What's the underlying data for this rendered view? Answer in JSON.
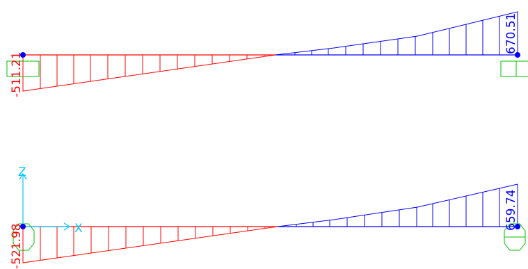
{
  "colors": {
    "negative": "#ff0000",
    "positive": "#0000ff",
    "support": "#00c000",
    "axis": "#00c8ff",
    "node": "#0000ff",
    "background": "#ffffff"
  },
  "beams": [
    {
      "id": "beam-1",
      "start_value": "-511.21",
      "end_value": "670.51",
      "start_support": "pin-box",
      "end_support": "pin-box"
    },
    {
      "id": "beam-2",
      "start_value": "-521.98",
      "end_value": "659.74",
      "start_support": "fixed-octagon",
      "end_support": "fixed-octagon"
    }
  ],
  "axes": {
    "z_label": "Z",
    "x_label": "X"
  }
}
